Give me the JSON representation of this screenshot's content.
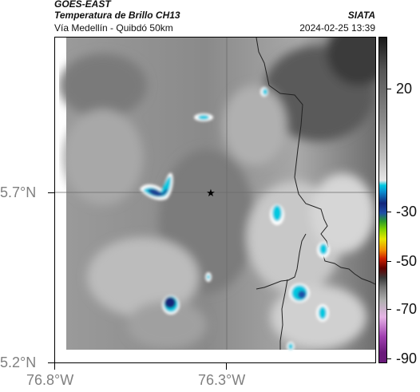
{
  "header": {
    "satellite": "GOES-EAST",
    "product": "Temperatura de Brillo CH13",
    "route": "Vía Medellín - Quibdó 50km",
    "org": "SIATA",
    "datetime": "2024-02-25 13:39"
  },
  "map": {
    "lat_labels": [
      "5.7°N",
      "5.2°N"
    ],
    "lon_labels": [
      "76.8°W",
      "76.3°W"
    ],
    "marker": "location-star"
  },
  "colorbar": {
    "labels": [
      "20",
      "-30",
      "-50",
      "-70",
      "-90"
    ],
    "colors": {
      "cold_cyan": "#00c8e0",
      "deep_blue": "#12257a",
      "green": "#2a9a2a",
      "yellow": "#e6e600",
      "red": "#d02000"
    }
  }
}
